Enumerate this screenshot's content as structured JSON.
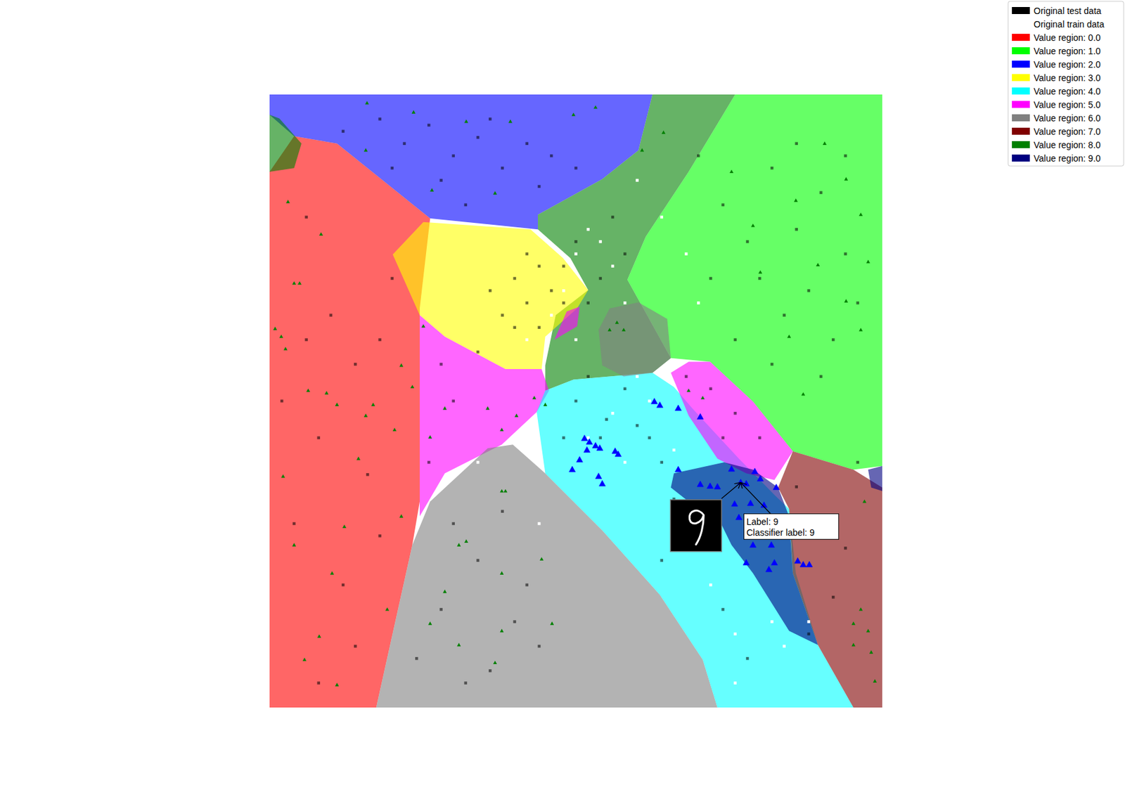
{
  "chart_data": {
    "type": "scatter",
    "xlim": [
      0,
      100
    ],
    "ylim": [
      0,
      100
    ],
    "tick_labels": false,
    "legend": "upper right",
    "regions": [
      {
        "name": "Value region: 0.0",
        "value": 0,
        "color": "#ff0000"
      },
      {
        "name": "Value region: 1.0",
        "value": 1,
        "color": "#00ff00"
      },
      {
        "name": "Value region: 2.0",
        "value": 2,
        "color": "#0000ff"
      },
      {
        "name": "Value region: 3.0",
        "value": 3,
        "color": "#ffff00"
      },
      {
        "name": "Value region: 4.0",
        "value": 4,
        "color": "#00ffff"
      },
      {
        "name": "Value region: 5.0",
        "value": 5,
        "color": "#ff00ff"
      },
      {
        "name": "Value region: 6.0",
        "value": 6,
        "color": "#808080"
      },
      {
        "name": "Value region: 7.0",
        "value": 7,
        "color": "#800000"
      },
      {
        "name": "Value region: 8.0",
        "value": 8,
        "color": "#008000"
      },
      {
        "name": "Value region: 9.0",
        "value": 9,
        "color": "#000080"
      }
    ],
    "areas": [
      {
        "value": 0,
        "points": [
          [
            0,
            87.4
          ],
          [
            4.0,
            93.2
          ],
          [
            11.0,
            92.0
          ],
          [
            26.2,
            79.8
          ],
          [
            24.5,
            65.1
          ],
          [
            24.5,
            33.6
          ],
          [
            23.3,
            26.5
          ],
          [
            17.4,
            0
          ],
          [
            0,
            0
          ]
        ]
      },
      {
        "value": 2,
        "points": [
          [
            0,
            100
          ],
          [
            62.5,
            100
          ],
          [
            60.2,
            90.9
          ],
          [
            54.3,
            86.2
          ],
          [
            43.8,
            80.4
          ],
          [
            43.8,
            78.0
          ],
          [
            26.2,
            79.8
          ],
          [
            11.0,
            92.0
          ],
          [
            4.0,
            93.2
          ],
          [
            0,
            96.7
          ]
        ]
      },
      {
        "value": 8,
        "points": [
          [
            0,
            96.7
          ],
          [
            1.6,
            96.1
          ],
          [
            5.2,
            92.0
          ],
          [
            4.0,
            88.0
          ],
          [
            0,
            87.4
          ]
        ]
      },
      {
        "value": 8,
        "points": [
          [
            62.5,
            100
          ],
          [
            76.0,
            100
          ],
          [
            68.4,
            87.4
          ],
          [
            61.4,
            76.8
          ],
          [
            58.4,
            69.8
          ],
          [
            65.5,
            57.0
          ],
          [
            62.5,
            54.6
          ],
          [
            49.6,
            53.5
          ],
          [
            45.0,
            51.7
          ],
          [
            45.0,
            55.8
          ],
          [
            46.7,
            64.0
          ],
          [
            52.0,
            68.1
          ],
          [
            49.1,
            73.3
          ],
          [
            43.8,
            78.0
          ],
          [
            43.8,
            80.4
          ],
          [
            54.3,
            86.2
          ],
          [
            60.2,
            90.9
          ]
        ]
      },
      {
        "value": 1,
        "points": [
          [
            76.0,
            100
          ],
          [
            100,
            100
          ],
          [
            100,
            39.4
          ],
          [
            95.3,
            38.8
          ],
          [
            85.4,
            41.8
          ],
          [
            78.9,
            49.9
          ],
          [
            71.9,
            56.4
          ],
          [
            65.5,
            57.0
          ],
          [
            58.4,
            69.8
          ],
          [
            61.4,
            76.8
          ],
          [
            68.4,
            87.4
          ]
        ]
      },
      {
        "value": 3,
        "points": [
          [
            25.1,
            79.2
          ],
          [
            42.6,
            78.0
          ],
          [
            47.9,
            73.3
          ],
          [
            52.0,
            68.1
          ],
          [
            50.2,
            65.1
          ],
          [
            45.0,
            60.5
          ],
          [
            44.4,
            55.2
          ],
          [
            38.5,
            55.2
          ],
          [
            28.6,
            60.5
          ],
          [
            24.5,
            64.0
          ],
          [
            20.1,
            73.9
          ]
        ]
      },
      {
        "value": 5,
        "points": [
          [
            48.5,
            64.6
          ],
          [
            50.6,
            65.4
          ],
          [
            50.2,
            62.2
          ],
          [
            46.5,
            60.0
          ]
        ]
      },
      {
        "value": 5,
        "points": [
          [
            24.5,
            64.0
          ],
          [
            28.6,
            60.5
          ],
          [
            38.5,
            55.2
          ],
          [
            44.4,
            55.2
          ],
          [
            45.6,
            51.7
          ],
          [
            43.6,
            48.2
          ],
          [
            37.9,
            42.9
          ],
          [
            28.6,
            38.2
          ],
          [
            24.5,
            31.2
          ]
        ]
      },
      {
        "value": 6,
        "points": [
          [
            17.4,
            0
          ],
          [
            23.3,
            26.5
          ],
          [
            26.2,
            33.6
          ],
          [
            35.6,
            42.3
          ],
          [
            39.7,
            42.9
          ],
          [
            45.0,
            38.2
          ],
          [
            54.3,
            28.9
          ],
          [
            63.7,
            18.4
          ],
          [
            70.7,
            7.8
          ],
          [
            73.1,
            0
          ]
        ]
      },
      {
        "value": 4,
        "points": [
          [
            45.0,
            51.7
          ],
          [
            49.6,
            53.5
          ],
          [
            62.5,
            54.6
          ],
          [
            66.0,
            52.3
          ],
          [
            69.0,
            48.8
          ],
          [
            76.6,
            40.6
          ],
          [
            82.4,
            34.7
          ],
          [
            84.8,
            32.4
          ],
          [
            85.9,
            21.9
          ],
          [
            89.5,
            10.2
          ],
          [
            95.3,
            0
          ],
          [
            73.1,
            0
          ],
          [
            70.7,
            7.8
          ],
          [
            63.7,
            18.4
          ],
          [
            54.3,
            28.9
          ],
          [
            45.0,
            38.2
          ],
          [
            43.6,
            48.2
          ]
        ]
      },
      {
        "value": 6,
        "points": [
          [
            53.7,
            61.6
          ],
          [
            55.5,
            65.1
          ],
          [
            60.2,
            66.1
          ],
          [
            64.9,
            63.4
          ],
          [
            65.5,
            57.0
          ],
          [
            62.5,
            54.6
          ],
          [
            57.8,
            54.0
          ],
          [
            54.3,
            55.8
          ]
        ]
      },
      {
        "value": 5,
        "points": [
          [
            65.5,
            54.6
          ],
          [
            68.4,
            56.4
          ],
          [
            71.9,
            56.4
          ],
          [
            78.9,
            49.9
          ],
          [
            85.4,
            41.8
          ],
          [
            82.4,
            37.1
          ],
          [
            77.8,
            38.2
          ],
          [
            73.1,
            40.6
          ],
          [
            68.4,
            47.6
          ]
        ]
      },
      {
        "value": 7,
        "points": [
          [
            85.4,
            41.8
          ],
          [
            95.3,
            38.8
          ],
          [
            100,
            35.9
          ],
          [
            100,
            0
          ],
          [
            95.3,
            0
          ],
          [
            89.5,
            10.2
          ],
          [
            85.4,
            21.9
          ],
          [
            84.8,
            32.4
          ],
          [
            83.0,
            35.9
          ]
        ]
      },
      {
        "value": 9,
        "points": [
          [
            66.0,
            38.2
          ],
          [
            74.2,
            40.0
          ],
          [
            78.9,
            38.8
          ],
          [
            83.0,
            35.9
          ],
          [
            84.8,
            31.2
          ],
          [
            85.4,
            21.9
          ],
          [
            89.5,
            10.2
          ],
          [
            84.8,
            12.5
          ],
          [
            78.9,
            21.9
          ],
          [
            75.4,
            26.5
          ],
          [
            73.1,
            31.2
          ],
          [
            68.4,
            33.6
          ],
          [
            65.5,
            35.9
          ]
        ]
      },
      {
        "value": 9,
        "points": [
          [
            97.7,
            38.8
          ],
          [
            100,
            39.4
          ],
          [
            100,
            35.3
          ],
          [
            98.2,
            35.9
          ]
        ]
      }
    ],
    "series": [
      {
        "name": "Original test data",
        "color": "#000000",
        "marker": "square",
        "x": [
          12,
          18,
          22,
          26,
          30,
          34,
          38,
          42,
          46,
          28,
          36,
          44,
          50,
          20,
          32,
          70,
          74,
          78,
          82,
          86,
          90,
          94,
          80,
          84,
          88,
          92,
          96,
          76,
          90,
          82,
          72,
          86,
          94,
          40,
          42,
          44,
          38,
          46,
          36,
          40,
          44,
          48,
          42,
          50,
          54,
          56,
          52,
          58,
          48,
          6,
          10,
          14,
          8,
          16,
          4,
          12,
          18,
          20,
          6,
          2,
          14,
          8,
          18,
          30,
          34,
          38,
          28,
          40,
          36,
          42,
          24,
          32,
          44,
          50,
          52,
          55,
          58,
          60,
          62,
          64,
          54,
          48,
          66,
          70,
          74,
          78,
          64,
          68,
          72,
          76,
          80,
          74,
          86,
          90,
          94,
          92,
          96,
          88,
          30,
          26,
          34,
          28
        ],
        "y": [
          94,
          96,
          92,
          95,
          90,
          93,
          88,
          92,
          90,
          86,
          96,
          85,
          88,
          88,
          82,
          90,
          82,
          76,
          88,
          78,
          84,
          74,
          70,
          64,
          68,
          60,
          66,
          60,
          54,
          56,
          70,
          92,
          90,
          70,
          66,
          72,
          64,
          68,
          68,
          62,
          62,
          66,
          74,
          76,
          70,
          80,
          66,
          74,
          72,
          60,
          64,
          56,
          44,
          38,
          30,
          20,
          60,
          70,
          80,
          50,
          10,
          4,
          28,
          30,
          24,
          32,
          16,
          14,
          6,
          20,
          8,
          4,
          10,
          50,
          54,
          47,
          52,
          46,
          44,
          40,
          44,
          44,
          34,
          26,
          16,
          8,
          24,
          54,
          52,
          48,
          44,
          44,
          36,
          30,
          26,
          18,
          40,
          12,
          50,
          40,
          58,
          56
        ]
      },
      {
        "name": "Original train data",
        "color": "#ffffff",
        "marker": "square",
        "x": [
          52,
          50,
          56,
          54,
          58,
          48,
          46,
          42,
          50,
          60,
          56,
          52,
          62,
          66,
          58,
          70,
          72,
          76,
          82,
          88,
          60,
          64,
          68,
          70,
          34,
          44,
          76,
          84
        ],
        "y": [
          78,
          74,
          72,
          76,
          66,
          68,
          64,
          60,
          60,
          54,
          48,
          44,
          50,
          42,
          40,
          32,
          20,
          12,
          14,
          14,
          86,
          80,
          74,
          66,
          40,
          30,
          4,
          10
        ]
      },
      {
        "name": null,
        "color": "#008000",
        "marker": "triangle",
        "x": [
          3.0,
          8.4,
          4.0,
          4.9,
          0.9,
          2.6,
          1.9,
          6.3,
          9.3,
          11.0,
          16.9,
          21.5,
          23.3,
          15.7,
          2.2,
          12.2,
          21.5,
          10.2,
          5.7,
          8.1,
          11.0,
          19.2,
          4.0,
          14.5,
          20.4,
          15.9,
          23.5,
          32.1,
          39.3,
          49.6,
          26.5,
          36.8,
          15.7,
          53.2,
          37.9,
          38.5,
          32.1,
          30.9,
          37.9,
          44.4,
          28.6,
          37.9,
          46.1,
          30.9,
          36.8,
          26.2,
          78.9,
          75.4,
          85.9,
          94.1,
          96.5,
          90.6,
          80.1,
          84.8,
          94.1,
          97.7,
          96.5,
          87.1,
          89.5,
          26.2,
          28.6,
          25.1,
          35.6,
          37.9,
          43.2,
          40.3,
          96.5,
          97.7,
          95.3,
          98.2,
          98.8,
          97.1,
          95.3,
          55.5,
          57.8,
          56.7,
          64.3,
          60.8,
          68.4,
          70.7,
          45.0
        ],
        "y": [
          82.5,
          77.2,
          69.2,
          69.2,
          61.8,
          58.5,
          60.5,
          51.7,
          51.3,
          49.4,
          49.4,
          55.8,
          52.3,
          47.6,
          37.7,
          29.5,
          31.2,
          21.9,
          7.8,
          11.6,
          3.7,
          16.0,
          26.5,
          40.6,
          45.3,
          98.6,
          97.1,
          95.6,
          95.6,
          96.7,
          84.4,
          83.9,
          90.9,
          97.9,
          35.3,
          35.3,
          27.1,
          26.5,
          21.9,
          24.2,
          18.9,
          12.5,
          13.7,
          10.2,
          7.3,
          13.7,
          78.6,
          87.4,
          82.7,
          86.2,
          80.4,
          92.0,
          71.0,
          60.5,
          66.3,
          72.7,
          61.6,
          51.1,
          72.2,
          44.1,
          48.8,
          62.2,
          48.8,
          45.3,
          50.5,
          47.6,
          16.0,
          12.5,
          13.7,
          9.0,
          4.3,
          33.6,
          10.2,
          61.6,
          61.6,
          62.8,
          93.8,
          90.9,
          51.7,
          50.5,
          49.4
        ]
      },
      {
        "name": null,
        "color": "#0000ff",
        "marker": "triangle",
        "x": [
          62.8,
          63.7,
          66.7,
          70.3,
          51.4,
          52.2,
          53.2,
          53.9,
          51.8,
          56.4,
          56.9,
          50.6,
          49.4,
          53.7,
          54.3,
          66.7,
          70.3,
          71.9,
          73.1,
          75.4,
          79.2,
          80.1,
          77.8,
          82.7,
          75.9,
          78.5,
          80.7,
          76.6,
          78.3,
          78.9,
          81.9,
          77.8,
          82.4,
          81.5,
          86.2,
          87.1,
          88.1,
          76.9
        ],
        "y": [
          49.9,
          49.3,
          48.8,
          47.4,
          43.9,
          43.3,
          42.7,
          42.3,
          42.0,
          41.8,
          41.3,
          40.4,
          38.8,
          37.7,
          36.5,
          38.8,
          36.4,
          36.1,
          36.0,
          38.9,
          38.5,
          37.3,
          36.5,
          35.9,
          33.2,
          33.3,
          33.0,
          31.0,
          29.5,
          26.5,
          26.5,
          23.6,
          23.6,
          22.5,
          23.9,
          23.3,
          23.3,
          36.7
        ]
      }
    ],
    "annotation": {
      "text_lines": [
        "Label: 9",
        "Classifier label: 9"
      ],
      "x": 76.9,
      "y": 36.7
    }
  }
}
